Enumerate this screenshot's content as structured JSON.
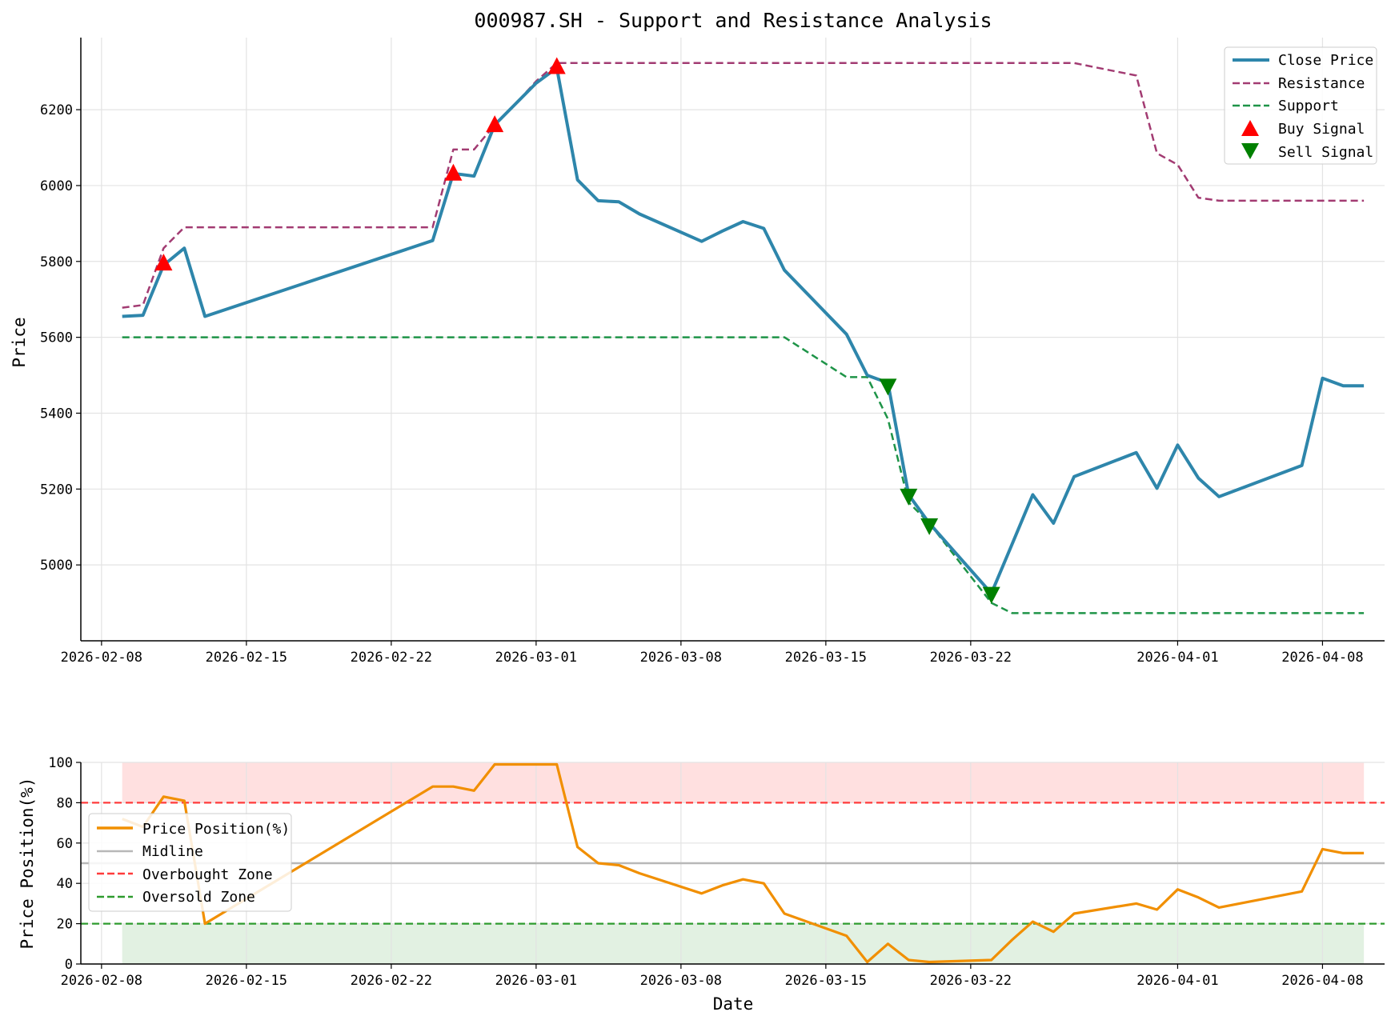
{
  "figure": {
    "title": "000987.SH - Support and Resistance Analysis"
  },
  "chart_data": [
    {
      "type": "line",
      "title": "000987.SH - Support and Resistance Analysis",
      "ylabel": "Price",
      "xlabel": "",
      "ylim": [
        4800,
        6390
      ],
      "yticks": [
        5000,
        5200,
        5400,
        5600,
        5800,
        6000,
        6200
      ],
      "xticks": [
        "2026-02-08",
        "2026-02-15",
        "2026-02-22",
        "2026-03-01",
        "2026-03-08",
        "2026-03-15",
        "2026-03-22",
        "2026-04-01",
        "2026-04-08"
      ],
      "xlim": [
        "2026-02-07",
        "2026-04-11"
      ],
      "grid": true,
      "legend": "top-right",
      "series": [
        {
          "name": "Close Price",
          "color": "#2E86AB",
          "style": "solid",
          "x": [
            "2026-02-09",
            "2026-02-10",
            "2026-02-11",
            "2026-02-12",
            "2026-02-13",
            "2026-02-24",
            "2026-02-25",
            "2026-02-26",
            "2026-02-27",
            "2026-02-28",
            "2026-03-01",
            "2026-03-02",
            "2026-03-03",
            "2026-03-04",
            "2026-03-05",
            "2026-03-06",
            "2026-03-09",
            "2026-03-10",
            "2026-03-11",
            "2026-03-12",
            "2026-03-13",
            "2026-03-16",
            "2026-03-17",
            "2026-03-18",
            "2026-03-19",
            "2026-03-20",
            "2026-03-23",
            "2026-03-24",
            "2026-03-25",
            "2026-03-26",
            "2026-03-27",
            "2026-03-30",
            "2026-03-31",
            "2026-04-01",
            "2026-04-02",
            "2026-04-03",
            "2026-04-07",
            "2026-04-08",
            "2026-04-09",
            "2026-04-10"
          ],
          "values": [
            5655,
            5658,
            5790,
            5835,
            5655,
            5855,
            6032,
            6025,
            6160,
            6215,
            6270,
            6310,
            6015,
            5960,
            5957,
            5925,
            5853,
            5880,
            5905,
            5887,
            5777,
            5608,
            5500,
            5480,
            5185,
            5110,
            4925,
            5055,
            5185,
            5110,
            5233,
            5296,
            5202,
            5316,
            5229,
            5180,
            5262,
            5492,
            5472,
            5472
          ]
        },
        {
          "name": "Resistance",
          "color": "#A23B72",
          "style": "dashed",
          "x": [
            "2026-02-09",
            "2026-02-10",
            "2026-02-11",
            "2026-02-12",
            "2026-02-24",
            "2026-02-25",
            "2026-02-26",
            "2026-02-27",
            "2026-02-28",
            "2026-03-01",
            "2026-03-02",
            "2026-03-27",
            "2026-03-30",
            "2026-03-31",
            "2026-04-01",
            "2026-04-02",
            "2026-04-03",
            "2026-04-10"
          ],
          "values": [
            5678,
            5685,
            5835,
            5890,
            5890,
            6095,
            6095,
            6160,
            6215,
            6275,
            6323,
            6323,
            6290,
            6085,
            6055,
            5968,
            5960,
            5960
          ]
        },
        {
          "name": "Support",
          "color": "#1E9448",
          "style": "dashed",
          "x": [
            "2026-02-09",
            "2026-03-13",
            "2026-03-16",
            "2026-03-17",
            "2026-03-18",
            "2026-03-19",
            "2026-03-20",
            "2026-03-23",
            "2026-03-24",
            "2026-04-10"
          ],
          "values": [
            5600,
            5600,
            5495,
            5495,
            5385,
            5165,
            5110,
            4900,
            4873,
            4873
          ]
        }
      ],
      "buy_signals": {
        "name": "Buy Signal",
        "color": "#FF0000",
        "x": [
          "2026-02-11",
          "2026-02-25",
          "2026-02-27",
          "2026-03-02"
        ],
        "values": [
          5795,
          6032,
          6160,
          6313
        ]
      },
      "sell_signals": {
        "name": "Sell Signal",
        "color": "#008000",
        "x": [
          "2026-03-18",
          "2026-03-19",
          "2026-03-20",
          "2026-03-23"
        ],
        "values": [
          5472,
          5182,
          5104,
          4923
        ]
      }
    },
    {
      "type": "line",
      "title": "",
      "ylabel": "Price Position(%)",
      "xlabel": "Date",
      "ylim": [
        0,
        100
      ],
      "yticks": [
        0,
        20,
        40,
        60,
        80,
        100
      ],
      "xticks": [
        "2026-02-08",
        "2026-02-15",
        "2026-02-22",
        "2026-03-01",
        "2026-03-08",
        "2026-03-15",
        "2026-03-22",
        "2026-04-01",
        "2026-04-08"
      ],
      "xlim": [
        "2026-02-07",
        "2026-04-11"
      ],
      "grid": true,
      "legend": "center-left",
      "series": [
        {
          "name": "Price Position(%)",
          "color": "#F18F01",
          "style": "solid",
          "x": [
            "2026-02-09",
            "2026-02-10",
            "2026-02-11",
            "2026-02-12",
            "2026-02-13",
            "2026-02-24",
            "2026-02-25",
            "2026-02-26",
            "2026-02-27",
            "2026-02-28",
            "2026-03-01",
            "2026-03-02",
            "2026-03-03",
            "2026-03-04",
            "2026-03-05",
            "2026-03-06",
            "2026-03-09",
            "2026-03-10",
            "2026-03-11",
            "2026-03-12",
            "2026-03-13",
            "2026-03-16",
            "2026-03-17",
            "2026-03-18",
            "2026-03-19",
            "2026-03-20",
            "2026-03-23",
            "2026-03-24",
            "2026-03-25",
            "2026-03-26",
            "2026-03-27",
            "2026-03-30",
            "2026-03-31",
            "2026-04-01",
            "2026-04-02",
            "2026-04-03",
            "2026-04-07",
            "2026-04-08",
            "2026-04-09",
            "2026-04-10"
          ],
          "values": [
            72,
            68,
            83,
            81,
            20,
            88,
            88,
            86,
            99,
            99,
            99,
            99,
            58,
            50,
            49,
            45,
            35,
            39,
            42,
            40,
            25,
            14,
            1,
            10,
            2,
            1,
            2,
            12,
            21,
            16,
            25,
            30,
            27,
            37,
            33,
            28,
            36,
            57,
            55,
            55
          ]
        },
        {
          "name": "Midline",
          "color": "#B8B8B8",
          "style": "solid",
          "value": 50
        },
        {
          "name": "Overbought Zone",
          "color": "#FF3B3B",
          "style": "dashed",
          "value": 80
        },
        {
          "name": "Oversold Zone",
          "color": "#2E9B2E",
          "style": "dashed",
          "value": 20
        }
      ],
      "zones": [
        {
          "from": 80,
          "to": 100,
          "color": "#FFE0E0"
        },
        {
          "from": 0,
          "to": 20,
          "color": "#E2F1E2"
        }
      ],
      "zone_x": [
        "2026-02-09",
        "2026-04-10"
      ]
    }
  ]
}
